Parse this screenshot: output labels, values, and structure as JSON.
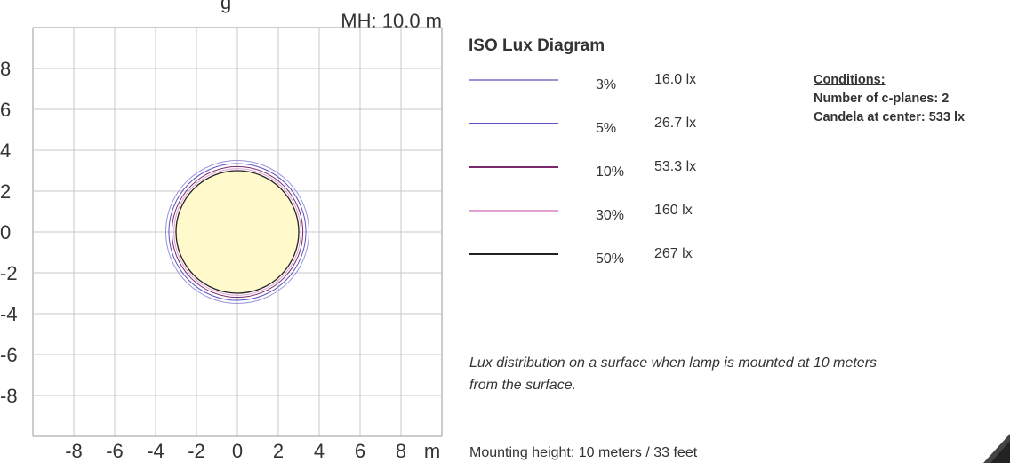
{
  "chart_data": {
    "type": "contour",
    "title_partial": "g",
    "mounting_label": "MH: 10.0 m",
    "xlim": [
      -10,
      10
    ],
    "ylim": [
      -10,
      10
    ],
    "grid": true,
    "x_ticks": [
      -8,
      -6,
      -4,
      -2,
      0,
      2,
      4,
      6,
      8
    ],
    "y_ticks": [
      8,
      6,
      4,
      2,
      0,
      -2,
      -4,
      -6,
      -8
    ],
    "x_unit": "m",
    "center_fill": "#fff9cc",
    "contours": [
      {
        "percent": "3%",
        "lux": "16.0 lx",
        "radius": 3.5,
        "color": "#9b93d8"
      },
      {
        "percent": "5%",
        "lux": "26.7 lx",
        "radius": 3.35,
        "color": "#5a52c8"
      },
      {
        "percent": "10%",
        "lux": "53.3 lx",
        "radius": 3.2,
        "color": "#7a2a6a"
      },
      {
        "percent": "30%",
        "lux": "160 lx",
        "radius": 3.1,
        "color": "#e0a0d0"
      },
      {
        "percent": "50%",
        "lux": "267 lx",
        "radius": 3.0,
        "color": "#222222"
      }
    ]
  },
  "legend": {
    "title": "ISO Lux Diagram"
  },
  "conditions": {
    "title": "Conditions:",
    "planes": "Number of c-planes: 2",
    "candela": "Candela at center: 533 lx"
  },
  "note": "Lux distribution on a surface when lamp is mounted at 10 meters from the surface.",
  "mounting_height": "Mounting height: 10 meters / 33 feet"
}
